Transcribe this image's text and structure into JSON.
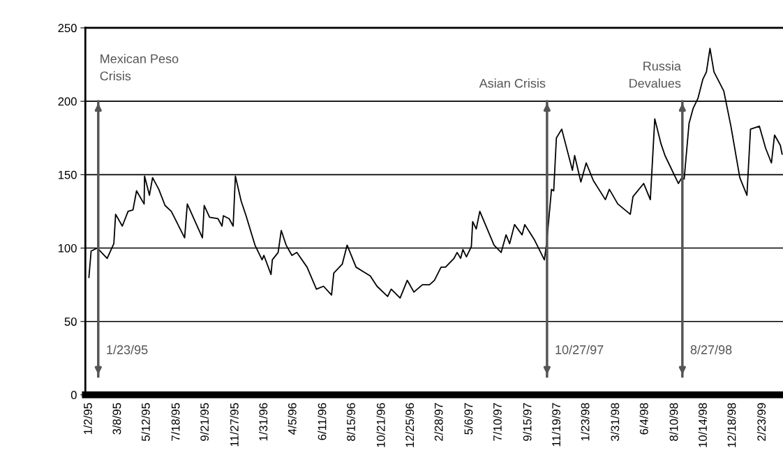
{
  "chart_data": {
    "type": "line",
    "x": [
      "1995-01-02",
      "1995-01-07",
      "1995-01-21",
      "1995-02-12",
      "1995-02-27",
      "1995-03-03",
      "1995-03-18",
      "1995-03-31",
      "1995-04-11",
      "1995-04-19",
      "1995-05-06",
      "1995-05-07",
      "1995-05-18",
      "1995-05-25",
      "1995-06-08",
      "1995-06-22",
      "1995-07-06",
      "1995-08-05",
      "1995-08-11",
      "1995-09-14",
      "1995-09-18",
      "1995-09-30",
      "1995-10-19",
      "1995-10-28",
      "1995-10-31",
      "1995-11-13",
      "1995-11-22",
      "1995-11-27",
      "1995-12-10",
      "1995-12-21",
      "1996-01-10",
      "1996-01-26",
      "1996-01-30",
      "1996-02-15",
      "1996-02-18",
      "1996-03-02",
      "1996-03-09",
      "1996-03-20",
      "1996-04-02",
      "1996-04-13",
      "1996-05-06",
      "1996-05-27",
      "1996-06-12",
      "1996-06-30",
      "1996-07-05",
      "1996-07-24",
      "1996-08-04",
      "1996-08-24",
      "1996-09-09",
      "1996-09-25",
      "1996-10-10",
      "1996-11-03",
      "1996-11-11",
      "1996-12-01",
      "1996-12-17",
      "1997-01-01",
      "1997-01-20",
      "1997-02-05",
      "1997-02-16",
      "1997-03-03",
      "1997-03-13",
      "1997-04-01",
      "1997-04-08",
      "1997-04-16",
      "1997-04-21",
      "1997-04-29",
      "1997-05-10",
      "1997-05-13",
      "1997-05-21",
      "1997-05-29",
      "1997-06-30",
      "1997-07-16",
      "1997-07-27",
      "1997-08-04",
      "1997-08-15",
      "1997-09-01",
      "1997-09-07",
      "1997-09-28",
      "1997-10-21",
      "1997-10-26",
      "1997-11-06",
      "1997-11-11",
      "1997-11-17",
      "1997-11-29",
      "1997-12-23",
      "1997-12-28",
      "1998-01-11",
      "1998-01-23",
      "1998-02-08",
      "1998-03-07",
      "1998-03-16",
      "1998-04-04",
      "1998-05-02",
      "1998-05-08",
      "1998-06-01",
      "1998-06-16",
      "1998-06-26",
      "1998-07-10",
      "1998-07-19",
      "1998-08-18",
      "1998-08-26",
      "1998-08-31",
      "1998-09-11",
      "1998-09-20",
      "1998-10-01",
      "1998-10-12",
      "1998-10-20",
      "1998-10-28",
      "1998-11-06",
      "1998-11-28",
      "1998-12-14",
      "1999-01-03",
      "1999-01-19",
      "1999-01-27",
      "1999-02-16",
      "1999-03-02",
      "1999-03-15",
      "1999-03-22",
      "1999-04-04",
      "1999-04-08"
    ],
    "series": [
      {
        "color": "#000000",
        "values": [
          80,
          98,
          100,
          93,
          103,
          123,
          115,
          125,
          126,
          139,
          130,
          149,
          136,
          148,
          140,
          129,
          125,
          107,
          130,
          107,
          129,
          121,
          120,
          115,
          122,
          120,
          115,
          149,
          132,
          122,
          102,
          92,
          95,
          82,
          92,
          97,
          112,
          102,
          95,
          97,
          87,
          72,
          74,
          68,
          83,
          89,
          102,
          87,
          84,
          81,
          74,
          67,
          72,
          66,
          78,
          70,
          75,
          75,
          78,
          87,
          87,
          93,
          97,
          93,
          99,
          94,
          101,
          118,
          113,
          125,
          102,
          97,
          109,
          103,
          116,
          109,
          116,
          106,
          92,
          103,
          140,
          139,
          175,
          181,
          153,
          163,
          145,
          158,
          146,
          133,
          140,
          130,
          123,
          135,
          144,
          133,
          188,
          171,
          163,
          144,
          148,
          147,
          185,
          195,
          202,
          215,
          220,
          236,
          220,
          207,
          183,
          148,
          136,
          181,
          183,
          168,
          158,
          177,
          170,
          164
        ]
      }
    ],
    "xlim": [
      "1994-12-25",
      "1999-04-10"
    ],
    "xticks": [
      {
        "value": "1995-01-02",
        "label": "1/2/95"
      },
      {
        "value": "1995-03-08",
        "label": "3/8/95"
      },
      {
        "value": "1995-05-12",
        "label": "5/12/95"
      },
      {
        "value": "1995-07-18",
        "label": "7/18/95"
      },
      {
        "value": "1995-09-21",
        "label": "9/21/95"
      },
      {
        "value": "1995-11-27",
        "label": "11/27/95"
      },
      {
        "value": "1996-01-31",
        "label": "1/31/96"
      },
      {
        "value": "1996-04-05",
        "label": "4/5/96"
      },
      {
        "value": "1996-06-11",
        "label": "6/11/96"
      },
      {
        "value": "1996-08-15",
        "label": "8/15/96"
      },
      {
        "value": "1996-10-21",
        "label": "10/21/96"
      },
      {
        "value": "1996-12-25",
        "label": "12/25/96"
      },
      {
        "value": "1997-02-28",
        "label": "2/28/97"
      },
      {
        "value": "1997-05-06",
        "label": "5/6/97"
      },
      {
        "value": "1997-07-10",
        "label": "7/10/97"
      },
      {
        "value": "1997-09-15",
        "label": "9/15/97"
      },
      {
        "value": "1997-11-19",
        "label": "11/19/97"
      },
      {
        "value": "1998-01-23",
        "label": "1/23/98"
      },
      {
        "value": "1998-03-31",
        "label": "3/31/98"
      },
      {
        "value": "1998-06-04",
        "label": "6/4/98"
      },
      {
        "value": "1998-08-10",
        "label": "8/10/98"
      },
      {
        "value": "1998-10-14",
        "label": "10/14/98"
      },
      {
        "value": "1998-12-18",
        "label": "12/18/98"
      },
      {
        "value": "1999-02-23",
        "label": "2/23/99"
      }
    ],
    "ylim": [
      0,
      250
    ],
    "yticks": [
      0,
      50,
      100,
      150,
      200,
      250
    ],
    "grid": "y",
    "ref_lines": [
      {
        "axis": "x",
        "value": "1995-01-23",
        "label": "Mexican Peso\nCrisis",
        "color": "#555555"
      },
      {
        "axis": "x",
        "value": "1997-10-27",
        "label": "Asian Crisis",
        "color": "#555555"
      },
      {
        "axis": "x",
        "value": "1998-08-27",
        "label": "Russia\nDevalues",
        "color": "#555555"
      }
    ],
    "annotations": [
      "1/23/95",
      "10/27/97",
      "8/27/98"
    ]
  }
}
